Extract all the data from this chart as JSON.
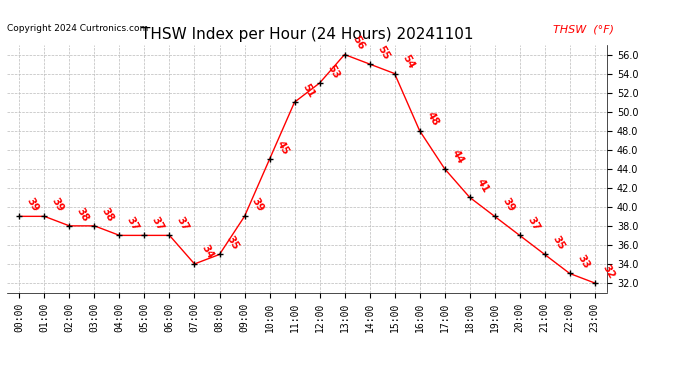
{
  "title": "THSW Index per Hour (24 Hours) 20241101",
  "copyright": "Copyright 2024 Curtronics.com",
  "legend_label": "THSW  (°F)",
  "hours": [
    0,
    1,
    2,
    3,
    4,
    5,
    6,
    7,
    8,
    9,
    10,
    11,
    12,
    13,
    14,
    15,
    16,
    17,
    18,
    19,
    20,
    21,
    22,
    23
  ],
  "values": [
    39,
    39,
    38,
    38,
    37,
    37,
    37,
    34,
    35,
    39,
    45,
    51,
    53,
    56,
    55,
    54,
    48,
    44,
    41,
    39,
    37,
    35,
    33,
    32
  ],
  "x_labels": [
    "00:00",
    "01:00",
    "02:00",
    "03:00",
    "04:00",
    "05:00",
    "06:00",
    "07:00",
    "08:00",
    "09:00",
    "10:00",
    "11:00",
    "12:00",
    "13:00",
    "14:00",
    "15:00",
    "16:00",
    "17:00",
    "18:00",
    "19:00",
    "20:00",
    "21:00",
    "22:00",
    "23:00"
  ],
  "ylim": [
    31.0,
    57.0
  ],
  "yticks": [
    32.0,
    34.0,
    36.0,
    38.0,
    40.0,
    42.0,
    44.0,
    46.0,
    48.0,
    50.0,
    52.0,
    54.0,
    56.0
  ],
  "line_color": "red",
  "marker_color": "black",
  "label_color": "red",
  "bg_color": "white",
  "grid_color": "#bbbbbb",
  "title_fontsize": 11,
  "tick_fontsize": 7,
  "annotation_fontsize": 7.5,
  "legend_fontsize": 8,
  "copyright_fontsize": 6.5
}
